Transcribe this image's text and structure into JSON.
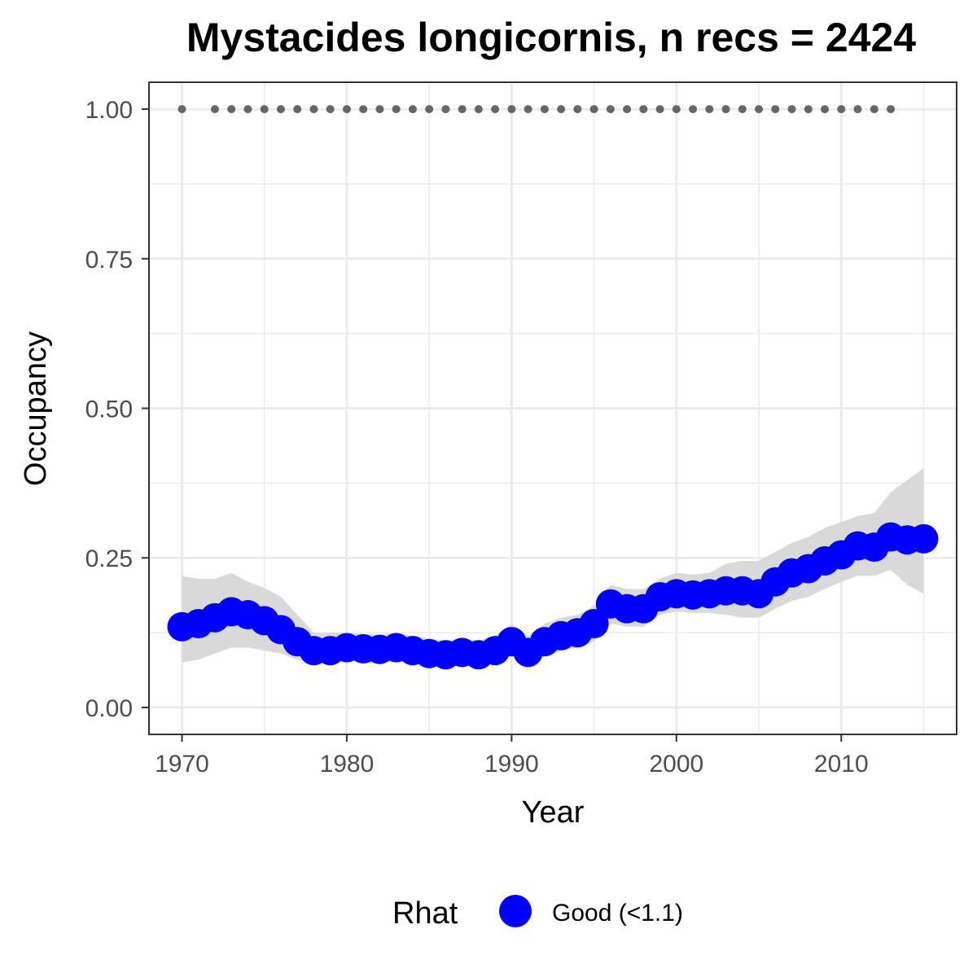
{
  "chart_data": {
    "type": "line",
    "title": "Mystacides longicornis, n recs = 2424",
    "xlabel": "Year",
    "ylabel": "Occupancy",
    "xlim": [
      1968,
      2017
    ],
    "ylim": [
      -0.045,
      1.045
    ],
    "x_ticks": [
      1970,
      1980,
      1990,
      2000,
      2010
    ],
    "x_tick_labels": [
      "1970",
      "1980",
      "1990",
      "2000",
      "2010"
    ],
    "y_ticks": [
      0,
      0.25,
      0.5,
      0.75,
      1.0
    ],
    "y_tick_labels": [
      "0.00",
      "0.25",
      "0.50",
      "0.75",
      "1.00"
    ],
    "grid": true,
    "legend_position": "bottom",
    "legend": {
      "title": "Rhat",
      "items": [
        {
          "label": "Good (<1.1)",
          "color": "#0000FF"
        }
      ]
    },
    "colors": {
      "points": "#0000FF",
      "ribbon": "#d9d9d9",
      "reporting_dots": "#666666"
    },
    "series": [
      {
        "x": [
          1970,
          1971,
          1972,
          1973,
          1974,
          1975,
          1976,
          1977,
          1978,
          1979,
          1980,
          1981,
          1982,
          1983,
          1984,
          1985,
          1986,
          1987,
          1988,
          1989,
          1990,
          1991,
          1992,
          1993,
          1994,
          1995,
          1996,
          1997,
          1998,
          1999,
          2000,
          2001,
          2002,
          2003,
          2004,
          2005,
          2006,
          2007,
          2008,
          2009,
          2010,
          2011,
          2012,
          2013,
          2014,
          2015
        ],
        "y": [
          0.135,
          0.14,
          0.15,
          0.16,
          0.155,
          0.145,
          0.13,
          0.11,
          0.095,
          0.095,
          0.1,
          0.098,
          0.097,
          0.1,
          0.095,
          0.09,
          0.088,
          0.092,
          0.088,
          0.095,
          0.11,
          0.092,
          0.11,
          0.12,
          0.125,
          0.14,
          0.173,
          0.165,
          0.165,
          0.185,
          0.19,
          0.188,
          0.19,
          0.195,
          0.195,
          0.19,
          0.21,
          0.225,
          0.232,
          0.245,
          0.255,
          0.27,
          0.268,
          0.285,
          0.28,
          0.282
        ],
        "lower": [
          0.075,
          0.08,
          0.09,
          0.1,
          0.1,
          0.095,
          0.09,
          0.08,
          0.075,
          0.075,
          0.078,
          0.075,
          0.075,
          0.078,
          0.073,
          0.07,
          0.07,
          0.072,
          0.07,
          0.075,
          0.085,
          0.075,
          0.085,
          0.095,
          0.1,
          0.11,
          0.14,
          0.135,
          0.135,
          0.155,
          0.16,
          0.158,
          0.158,
          0.155,
          0.15,
          0.15,
          0.165,
          0.178,
          0.185,
          0.198,
          0.21,
          0.22,
          0.22,
          0.23,
          0.205,
          0.19
        ],
        "upper": [
          0.22,
          0.215,
          0.215,
          0.225,
          0.21,
          0.2,
          0.185,
          0.155,
          0.125,
          0.125,
          0.125,
          0.123,
          0.122,
          0.125,
          0.12,
          0.115,
          0.112,
          0.115,
          0.112,
          0.12,
          0.14,
          0.12,
          0.14,
          0.15,
          0.155,
          0.17,
          0.205,
          0.198,
          0.198,
          0.215,
          0.225,
          0.222,
          0.225,
          0.24,
          0.245,
          0.245,
          0.26,
          0.275,
          0.285,
          0.3,
          0.31,
          0.32,
          0.325,
          0.36,
          0.38,
          0.4
        ]
      }
    ],
    "reporting_years": [
      1970,
      1972,
      1973,
      1974,
      1975,
      1976,
      1977,
      1978,
      1979,
      1980,
      1981,
      1982,
      1983,
      1984,
      1985,
      1986,
      1987,
      1988,
      1989,
      1990,
      1991,
      1992,
      1993,
      1994,
      1995,
      1996,
      1997,
      1998,
      1999,
      2000,
      2001,
      2002,
      2003,
      2004,
      2005,
      2006,
      2007,
      2008,
      2009,
      2010,
      2011,
      2012,
      2013
    ],
    "reporting_value": 1.0
  }
}
